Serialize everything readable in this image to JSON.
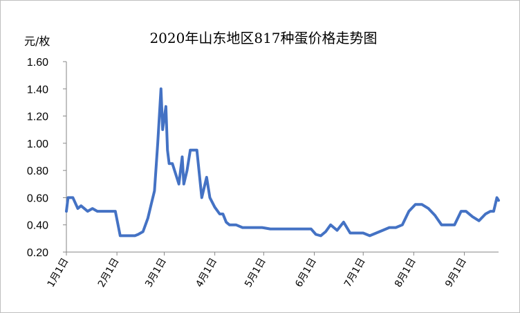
{
  "chart_data": {
    "type": "line",
    "title": "2020年山东地区817种蛋价格走势图",
    "ylabel": "元/枚",
    "xlabel": "",
    "ylim": [
      0.2,
      1.6
    ],
    "yticks": [
      "1.60",
      "1.40",
      "1.20",
      "1.00",
      "0.80",
      "0.60",
      "0.40",
      "0.20"
    ],
    "xticks": [
      "1月1日",
      "2月1日",
      "3月1日",
      "4月1日",
      "5月1日",
      "6月1日",
      "7月1日",
      "8月1日",
      "9月1日"
    ],
    "grid": false,
    "legend": "none",
    "line_color": "#4472c4",
    "series": [
      {
        "x": [
          "1/1",
          "1/2",
          "1/5",
          "1/8",
          "1/10",
          "1/12",
          "1/14",
          "1/17",
          "1/20",
          "1/22",
          "1/24",
          "1/26",
          "1/28",
          "1/31",
          "2/3",
          "2/5",
          "2/8",
          "2/10",
          "2/12",
          "2/14",
          "2/17",
          "2/20",
          "2/22",
          "2/24",
          "2/26",
          "2/28",
          "2/29",
          "3/2",
          "3/3",
          "3/4",
          "3/6",
          "3/10",
          "3/12",
          "3/13",
          "3/15",
          "3/17",
          "3/19",
          "3/21",
          "3/24",
          "3/27",
          "3/29",
          "4/1",
          "4/4",
          "4/6",
          "4/8",
          "4/10",
          "4/14",
          "4/18",
          "4/22",
          "4/26",
          "4/30",
          "5/5",
          "5/10",
          "5/20",
          "5/30",
          "6/2",
          "6/5",
          "6/8",
          "6/11",
          "6/15",
          "6/19",
          "6/23",
          "6/27",
          "7/1",
          "7/5",
          "7/9",
          "7/13",
          "7/17",
          "7/21",
          "7/25",
          "7/29",
          "8/2",
          "8/6",
          "8/10",
          "8/14",
          "8/18",
          "8/22",
          "8/26",
          "8/30",
          "9/2",
          "9/6",
          "9/10",
          "9/14",
          "9/17",
          "9/19",
          "9/21",
          "9/22"
        ],
        "y": [
          0.5,
          0.6,
          0.6,
          0.52,
          0.54,
          0.52,
          0.5,
          0.52,
          0.5,
          0.5,
          0.5,
          0.5,
          0.5,
          0.5,
          0.32,
          0.32,
          0.32,
          0.32,
          0.32,
          0.33,
          0.35,
          0.45,
          0.55,
          0.65,
          1.0,
          1.4,
          1.1,
          1.27,
          0.95,
          0.85,
          0.85,
          0.7,
          0.9,
          0.7,
          0.8,
          0.95,
          0.95,
          0.95,
          0.6,
          0.75,
          0.6,
          0.53,
          0.48,
          0.48,
          0.42,
          0.4,
          0.4,
          0.38,
          0.38,
          0.38,
          0.38,
          0.37,
          0.37,
          0.37,
          0.37,
          0.33,
          0.32,
          0.35,
          0.4,
          0.36,
          0.42,
          0.34,
          0.34,
          0.34,
          0.32,
          0.34,
          0.36,
          0.38,
          0.38,
          0.4,
          0.5,
          0.55,
          0.55,
          0.52,
          0.47,
          0.4,
          0.4,
          0.4,
          0.5,
          0.5,
          0.46,
          0.43,
          0.48,
          0.5,
          0.5,
          0.6,
          0.58
        ]
      }
    ]
  }
}
